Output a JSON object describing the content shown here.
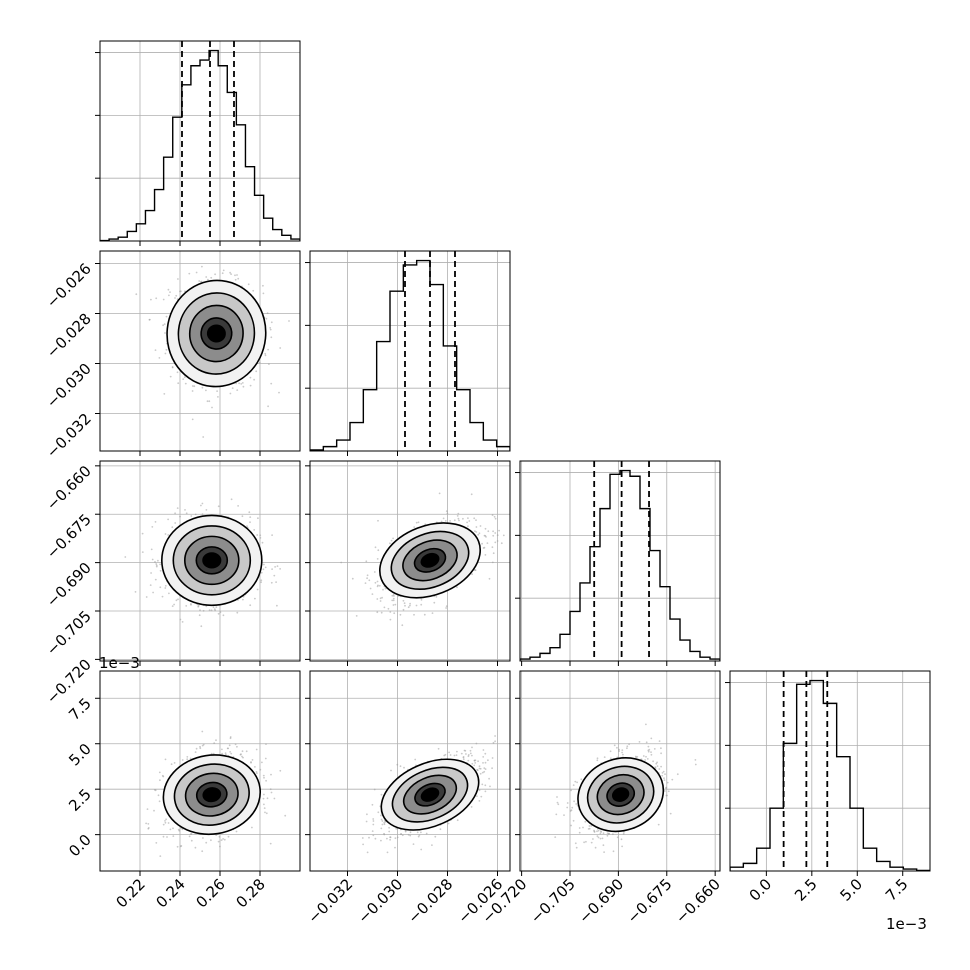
{
  "figure": {
    "type": "corner",
    "offset_y_label": "1e−3",
    "offset_x_label": "1e−3"
  },
  "colors": {
    "background": "#ffffff",
    "ink": "#000000",
    "grid": "#b0b0b0"
  },
  "chart_data": {
    "type": "corner",
    "grid": true,
    "parameters": [
      {
        "range": [
          0.2,
          0.3
        ],
        "ticks": [
          0.22,
          0.24,
          0.26,
          0.28
        ],
        "tick_labels": [
          "0.22",
          "0.24",
          "0.26",
          "0.28"
        ],
        "quantiles": [
          0.241,
          0.255,
          0.267
        ],
        "hist": [
          0.2,
          1,
          2,
          5,
          9,
          16,
          27,
          44,
          65,
          82,
          92,
          95,
          100,
          92,
          78,
          61,
          39,
          24,
          12,
          6,
          3,
          1
        ]
      },
      {
        "range": [
          -0.0335,
          -0.0255
        ],
        "ticks": [
          -0.032,
          -0.03,
          -0.028,
          -0.026
        ],
        "tick_labels": [
          "−0.032",
          "−0.030",
          "−0.028",
          "−0.026"
        ],
        "quantiles": [
          -0.0297,
          -0.0287,
          -0.0277
        ],
        "hist": [
          0.5,
          2,
          5,
          13,
          28,
          50,
          73,
          85,
          87,
          76,
          48,
          28,
          13,
          5,
          2
        ]
      },
      {
        "range": [
          -0.7205,
          -0.6585
        ],
        "ticks": [
          -0.72,
          -0.705,
          -0.69,
          -0.675,
          -0.66
        ],
        "tick_labels": [
          "−0.720",
          "−0.705",
          "−0.690",
          "−0.675",
          "−0.660"
        ],
        "quantiles": [
          -0.6975,
          -0.689,
          -0.6805
        ],
        "hist": [
          1,
          2,
          4,
          7,
          14,
          26,
          41,
          60,
          80,
          98,
          100,
          97,
          80,
          58,
          39,
          22,
          11,
          5,
          2,
          1
        ]
      },
      {
        "range": [
          -0.002,
          0.009
        ],
        "ticks": [
          0.0,
          0.0025,
          0.005,
          0.0075
        ],
        "tick_labels": [
          "0.0",
          "2.5",
          "5.0",
          "7.5"
        ],
        "quantiles": [
          0.00095,
          0.0022,
          0.00335
        ],
        "hist": [
          2,
          4,
          12,
          33,
          67,
          98,
          100,
          88,
          60,
          33,
          12,
          5,
          2,
          1,
          0.3
        ]
      }
    ],
    "pairs": [
      {
        "row": 1,
        "col": 0,
        "center": [
          0.2582,
          -0.0288
        ],
        "spread": [
          0.0115,
          0.00105
        ],
        "corr": -0.1
      },
      {
        "row": 2,
        "col": 0,
        "center": [
          0.2559,
          -0.6893
        ],
        "spread": [
          0.0115,
          0.0065
        ],
        "corr": 0.0
      },
      {
        "row": 2,
        "col": 1,
        "center": [
          -0.0287,
          -0.6893
        ],
        "spread": [
          0.00105,
          0.0065
        ],
        "corr": 0.55
      },
      {
        "row": 3,
        "col": 0,
        "center": [
          0.2559,
          0.0022
        ],
        "spread": [
          0.0115,
          0.0011
        ],
        "corr": 0.2
      },
      {
        "row": 3,
        "col": 1,
        "center": [
          -0.0287,
          0.0022
        ],
        "spread": [
          0.00105,
          0.0011
        ],
        "corr": 0.65
      },
      {
        "row": 3,
        "col": 2,
        "center": [
          -0.6893,
          0.0022
        ],
        "spread": [
          0.0065,
          0.0011
        ],
        "corr": 0.4
      }
    ]
  }
}
